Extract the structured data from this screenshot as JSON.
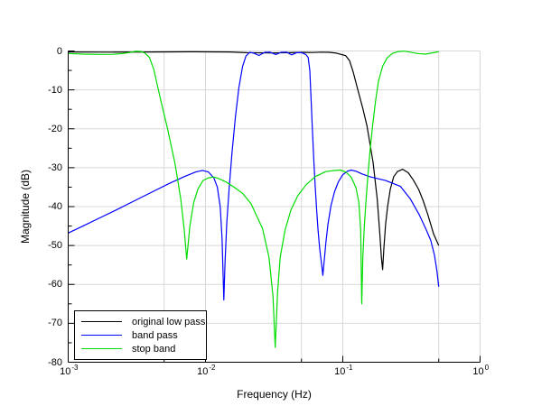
{
  "figure": {
    "background": "#ffffff"
  },
  "chart_data": {
    "type": "line",
    "title": "",
    "xlabel": "Frequency (Hz)",
    "ylabel": "Magnitude (dB)",
    "x_scale": "log",
    "xlim": [
      0.001,
      1
    ],
    "ylim": [
      -80,
      0
    ],
    "grid": {
      "color": "#d8d8d8",
      "x_lines": [
        0.005,
        0.01,
        0.05,
        0.1,
        0.5,
        1
      ],
      "y_lines": [
        0,
        -10,
        -20,
        -30,
        -40,
        -50,
        -60,
        -70
      ]
    },
    "axis_color": "#000000",
    "x_ticks": [
      {
        "value": 0.001,
        "base": "10",
        "exp": "-3"
      },
      {
        "value": 0.01,
        "base": "10",
        "exp": "-2"
      },
      {
        "value": 0.1,
        "base": "10",
        "exp": "-1"
      },
      {
        "value": 1,
        "base": "10",
        "exp": "0"
      }
    ],
    "x_minor_ticks": [
      0.005,
      0.05,
      0.5
    ],
    "y_ticks": [
      {
        "value": 0,
        "label": "0"
      },
      {
        "value": -10,
        "label": "-10"
      },
      {
        "value": -20,
        "label": "-20"
      },
      {
        "value": -30,
        "label": "-30"
      },
      {
        "value": -40,
        "label": "-40"
      },
      {
        "value": -50,
        "label": "-50"
      },
      {
        "value": -60,
        "label": "-60"
      },
      {
        "value": -70,
        "label": "-70"
      },
      {
        "value": -80,
        "label": "-80"
      }
    ],
    "y_minor_ticks": [
      -5,
      -15,
      -25,
      -35,
      -45,
      -55,
      -65,
      -75
    ],
    "legend": {
      "position": "bottom-left"
    },
    "series": [
      {
        "name": "original low pass",
        "color": "#000000",
        "points": [
          [
            0.001,
            -0.25
          ],
          [
            0.002,
            -0.3
          ],
          [
            0.004,
            -0.25
          ],
          [
            0.008,
            -0.2
          ],
          [
            0.015,
            -0.25
          ],
          [
            0.02,
            -0.45
          ],
          [
            0.03,
            -0.5
          ],
          [
            0.04,
            -0.45
          ],
          [
            0.05,
            -0.35
          ],
          [
            0.06,
            -0.4
          ],
          [
            0.07,
            -0.3
          ],
          [
            0.08,
            -0.35
          ],
          [
            0.09,
            -0.55
          ],
          [
            0.105,
            -1.2
          ],
          [
            0.112,
            -2.5
          ],
          [
            0.119,
            -5.4
          ],
          [
            0.129,
            -10.1
          ],
          [
            0.14,
            -14.8
          ],
          [
            0.15,
            -19.3
          ],
          [
            0.166,
            -28.6
          ],
          [
            0.178,
            -38
          ],
          [
            0.186,
            -47
          ],
          [
            0.191,
            -53
          ],
          [
            0.195,
            -56.2
          ],
          [
            0.199,
            -51
          ],
          [
            0.205,
            -44.5
          ],
          [
            0.212,
            -40
          ],
          [
            0.222,
            -35.5
          ],
          [
            0.235,
            -32.3
          ],
          [
            0.25,
            -31
          ],
          [
            0.273,
            -30.4
          ],
          [
            0.3,
            -31.3
          ],
          [
            0.327,
            -33.2
          ],
          [
            0.357,
            -35.6
          ],
          [
            0.385,
            -38.5
          ],
          [
            0.414,
            -41.8
          ],
          [
            0.458,
            -47
          ],
          [
            0.5,
            -50
          ]
        ]
      },
      {
        "name": "band pass",
        "color": "#0000ff",
        "points": [
          [
            0.001,
            -46.8
          ],
          [
            0.0013,
            -44.9
          ],
          [
            0.0017,
            -42.9
          ],
          [
            0.0022,
            -41
          ],
          [
            0.003,
            -38.6
          ],
          [
            0.004,
            -36.4
          ],
          [
            0.0055,
            -34
          ],
          [
            0.007,
            -32.3
          ],
          [
            0.0085,
            -31.1
          ],
          [
            0.0095,
            -30.7
          ],
          [
            0.0105,
            -31.1
          ],
          [
            0.0115,
            -32.6
          ],
          [
            0.0122,
            -35
          ],
          [
            0.0128,
            -40
          ],
          [
            0.0132,
            -48
          ],
          [
            0.0136,
            -64
          ],
          [
            0.0139,
            -54
          ],
          [
            0.0143,
            -44
          ],
          [
            0.0149,
            -35
          ],
          [
            0.0156,
            -26
          ],
          [
            0.0165,
            -17
          ],
          [
            0.0175,
            -9.5
          ],
          [
            0.0186,
            -4
          ],
          [
            0.0197,
            -1.3
          ],
          [
            0.021,
            -0.35
          ],
          [
            0.0225,
            -0.55
          ],
          [
            0.0245,
            -1.15
          ],
          [
            0.027,
            -0.35
          ],
          [
            0.0295,
            -0.3
          ],
          [
            0.0325,
            -0.9
          ],
          [
            0.0355,
            -0.35
          ],
          [
            0.039,
            -0.3
          ],
          [
            0.0425,
            -1
          ],
          [
            0.046,
            -0.45
          ],
          [
            0.05,
            -0.4
          ],
          [
            0.054,
            -0.95
          ],
          [
            0.056,
            -1.7
          ],
          [
            0.0575,
            -5
          ],
          [
            0.0587,
            -11.9
          ],
          [
            0.06,
            -20
          ],
          [
            0.0615,
            -28
          ],
          [
            0.063,
            -35
          ],
          [
            0.0645,
            -41
          ],
          [
            0.066,
            -46
          ],
          [
            0.068,
            -51
          ],
          [
            0.0705,
            -55.5
          ],
          [
            0.0715,
            -57.7
          ],
          [
            0.0728,
            -55
          ],
          [
            0.0755,
            -49
          ],
          [
            0.078,
            -44.5
          ],
          [
            0.082,
            -39.8
          ],
          [
            0.087,
            -36.2
          ],
          [
            0.093,
            -33.6
          ],
          [
            0.1,
            -31.8
          ],
          [
            0.108,
            -30.9
          ],
          [
            0.115,
            -30.6
          ],
          [
            0.125,
            -30.9
          ],
          [
            0.14,
            -31.7
          ],
          [
            0.16,
            -32.4
          ],
          [
            0.205,
            -33.3
          ],
          [
            0.263,
            -34.8
          ],
          [
            0.31,
            -38
          ],
          [
            0.357,
            -41.8
          ],
          [
            0.4,
            -45.5
          ],
          [
            0.437,
            -48.7
          ],
          [
            0.465,
            -52.5
          ],
          [
            0.485,
            -56.5
          ],
          [
            0.5,
            -60.6
          ]
        ]
      },
      {
        "name": "stop band",
        "color": "#00dd00",
        "points": [
          [
            0.001,
            -0.65
          ],
          [
            0.0013,
            -0.8
          ],
          [
            0.0017,
            -0.88
          ],
          [
            0.0021,
            -0.85
          ],
          [
            0.0025,
            -0.65
          ],
          [
            0.0028,
            -0.4
          ],
          [
            0.0031,
            -0.1
          ],
          [
            0.0034,
            -0.15
          ],
          [
            0.0036,
            -0.5
          ],
          [
            0.0039,
            -1.6
          ],
          [
            0.0042,
            -4.7
          ],
          [
            0.0047,
            -12.4
          ],
          [
            0.0053,
            -20.1
          ],
          [
            0.006,
            -29
          ],
          [
            0.0066,
            -38
          ],
          [
            0.007,
            -46
          ],
          [
            0.0073,
            -53.5
          ],
          [
            0.0077,
            -45
          ],
          [
            0.0082,
            -39
          ],
          [
            0.0088,
            -35.5
          ],
          [
            0.0096,
            -33.3
          ],
          [
            0.0105,
            -32.6
          ],
          [
            0.0115,
            -32.4
          ],
          [
            0.0125,
            -32.8
          ],
          [
            0.014,
            -33.6
          ],
          [
            0.016,
            -34.9
          ],
          [
            0.0186,
            -36.6
          ],
          [
            0.0215,
            -39.3
          ],
          [
            0.026,
            -45.6
          ],
          [
            0.029,
            -53
          ],
          [
            0.031,
            -63
          ],
          [
            0.0322,
            -76.2
          ],
          [
            0.0335,
            -62
          ],
          [
            0.035,
            -53
          ],
          [
            0.038,
            -46
          ],
          [
            0.042,
            -40.8
          ],
          [
            0.047,
            -37.2
          ],
          [
            0.054,
            -34.4
          ],
          [
            0.063,
            -32.3
          ],
          [
            0.075,
            -31
          ],
          [
            0.088,
            -30.7
          ],
          [
            0.096,
            -30.6
          ],
          [
            0.105,
            -31.1
          ],
          [
            0.115,
            -32.4
          ],
          [
            0.125,
            -35.2
          ],
          [
            0.131,
            -39
          ],
          [
            0.135,
            -46
          ],
          [
            0.1375,
            -65
          ],
          [
            0.14,
            -53
          ],
          [
            0.143,
            -46
          ],
          [
            0.147,
            -39.5
          ],
          [
            0.152,
            -32.5
          ],
          [
            0.158,
            -25.5
          ],
          [
            0.165,
            -19
          ],
          [
            0.173,
            -13
          ],
          [
            0.182,
            -7.8
          ],
          [
            0.195,
            -3.9
          ],
          [
            0.21,
            -1.8
          ],
          [
            0.23,
            -0.6
          ],
          [
            0.255,
            -0.15
          ],
          [
            0.28,
            -0.05
          ],
          [
            0.31,
            -0.3
          ],
          [
            0.35,
            -0.65
          ],
          [
            0.4,
            -0.8
          ],
          [
            0.44,
            -0.55
          ],
          [
            0.47,
            -0.35
          ],
          [
            0.5,
            -0.2
          ]
        ]
      }
    ]
  }
}
